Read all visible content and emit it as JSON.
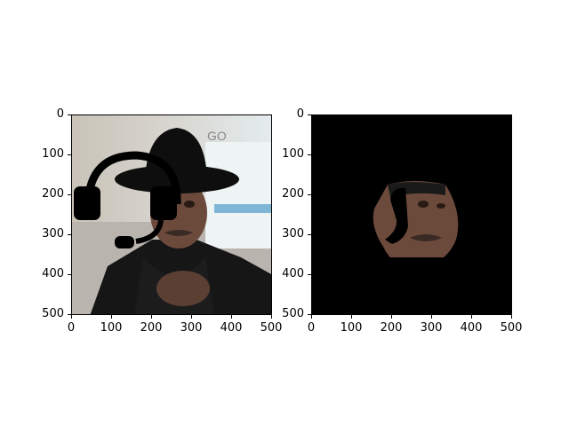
{
  "figure": {
    "panels": [
      {
        "id": "left",
        "content": "photo-with-headset",
        "x_ticks": [
          "0",
          "100",
          "200",
          "300",
          "400",
          "500"
        ],
        "y_ticks": [
          "0",
          "100",
          "200",
          "300",
          "400",
          "500"
        ]
      },
      {
        "id": "right",
        "content": "masked-face-on-black",
        "x_ticks": [
          "0",
          "100",
          "200",
          "300",
          "400",
          "500"
        ],
        "y_ticks": [
          "0",
          "100",
          "200",
          "300",
          "400",
          "500"
        ]
      }
    ]
  },
  "colors": {
    "mask": "#000000",
    "background": "#ffffff"
  },
  "icons": {
    "overlay": "headset-icon"
  }
}
